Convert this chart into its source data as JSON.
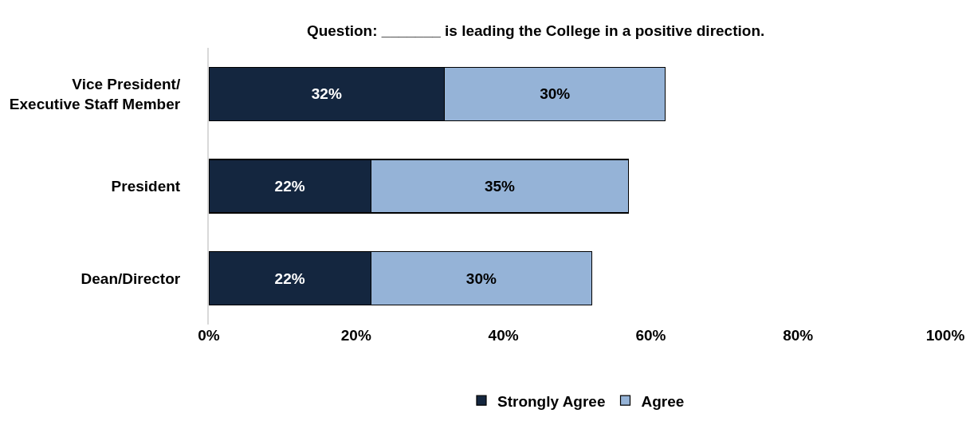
{
  "chart_data": {
    "type": "bar",
    "orientation": "horizontal",
    "stacked": true,
    "title": "Question: _______ is leading the College in a positive direction.",
    "categories": [
      "Vice President/\nExecutive Staff Member",
      "President",
      "Dean/Director"
    ],
    "series": [
      {
        "name": "Strongly Agree",
        "color": "#14263f",
        "values": [
          32,
          22,
          22
        ],
        "value_labels": [
          "32%",
          "22%",
          "22%"
        ]
      },
      {
        "name": "Agree",
        "color": "#95b3d7",
        "values": [
          30,
          35,
          30
        ],
        "value_labels": [
          "30%",
          "35%",
          "30%"
        ]
      }
    ],
    "xlim": [
      0,
      100
    ],
    "xticks": [
      {
        "value": 0,
        "label": "0%"
      },
      {
        "value": 20,
        "label": "20%"
      },
      {
        "value": 40,
        "label": "40%"
      },
      {
        "value": 60,
        "label": "60%"
      },
      {
        "value": 80,
        "label": "80%"
      },
      {
        "value": 100,
        "label": "100%"
      }
    ],
    "legend": "bottom"
  }
}
